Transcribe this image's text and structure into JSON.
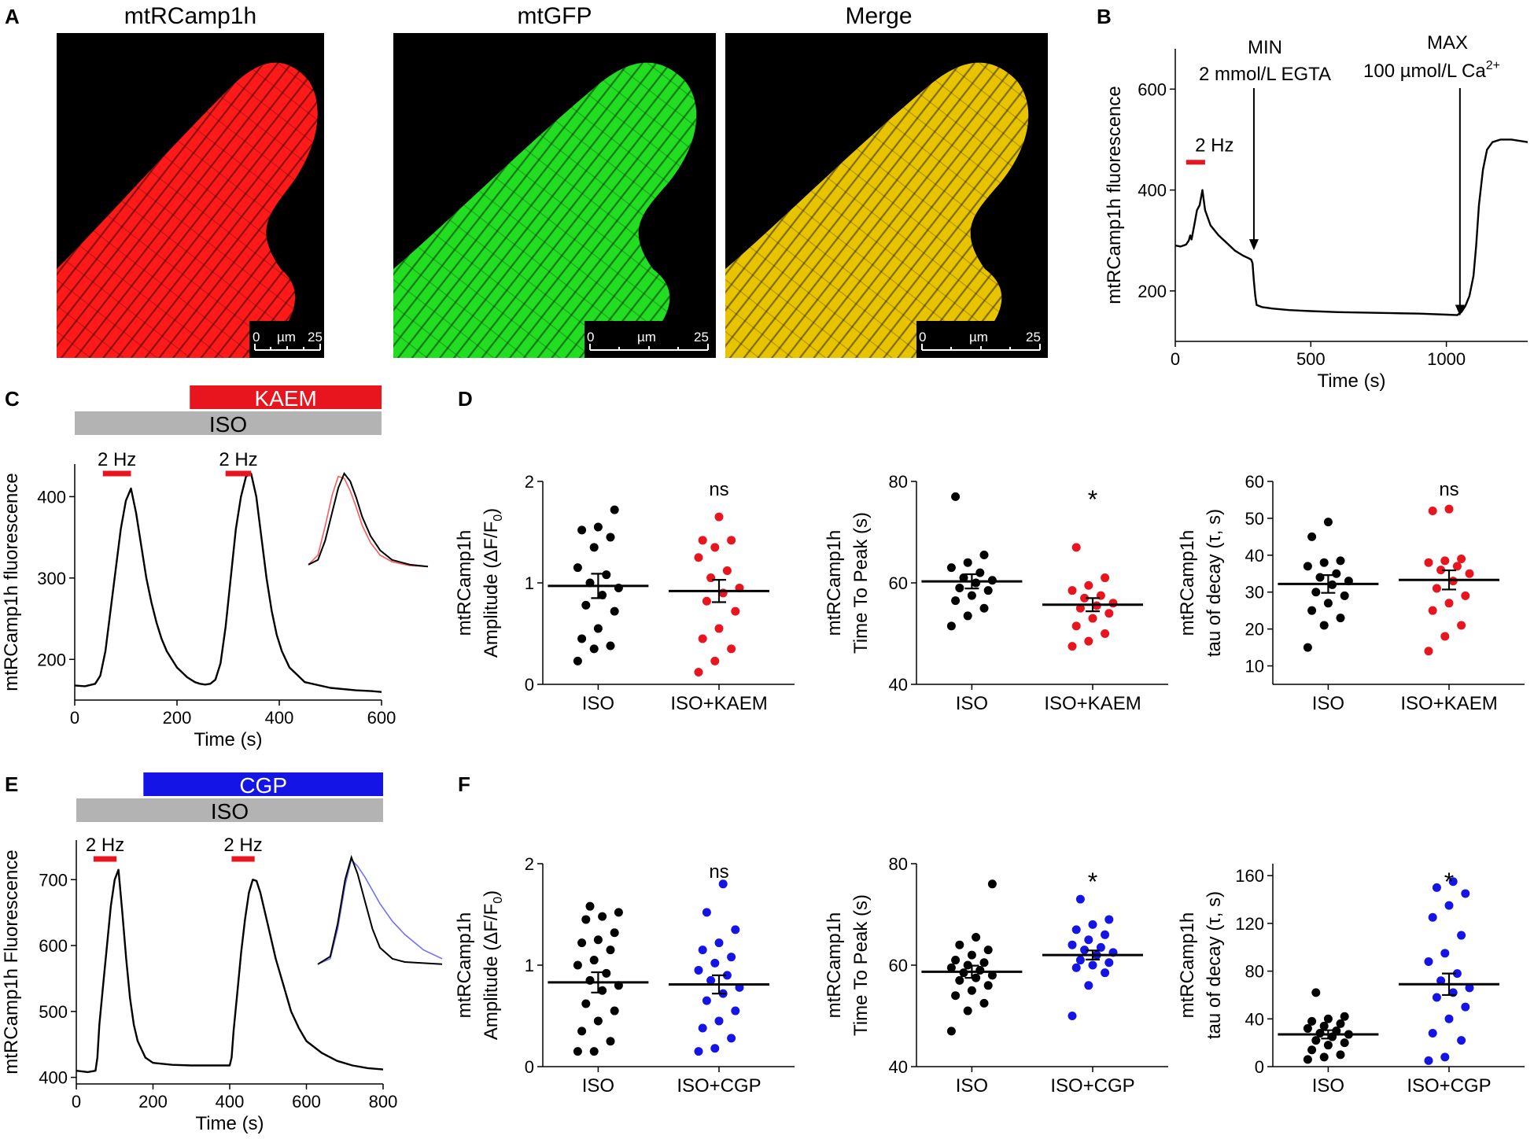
{
  "panels": {
    "A": {
      "letter": "A",
      "images": [
        {
          "title": "mtRCamp1h",
          "tint": "#ff1a1a",
          "scale_start": "0",
          "scale_unit": "µm",
          "scale_end": "25"
        },
        {
          "title": "mtGFP",
          "tint": "#22dd22",
          "scale_start": "0",
          "scale_unit": "µm",
          "scale_end": "25"
        },
        {
          "title": "Merge",
          "tint": "#e8c400",
          "scale_start": "0",
          "scale_unit": "µm",
          "scale_end": "25"
        }
      ]
    },
    "B": {
      "letter": "B",
      "annot_min": "MIN",
      "annot_egta": "2 mmol/L  EGTA",
      "annot_max": "MAX",
      "annot_ca": "100 µmol/L Ca",
      "annot_ca_sup": "2+",
      "stim_label": "2 Hz"
    },
    "C": {
      "letter": "C",
      "bar_drug": "KAEM",
      "bar_iso": "ISO",
      "stim_label_1": "2 Hz",
      "stim_label_2": "2 Hz"
    },
    "D": {
      "letter": "D"
    },
    "E": {
      "letter": "E",
      "bar_drug": "CGP",
      "bar_iso": "ISO",
      "stim_label_1": "2 Hz",
      "stim_label_2": "2 Hz"
    },
    "F": {
      "letter": "F"
    }
  },
  "colors": {
    "red": "#e8141e",
    "blue": "#1414e6",
    "gray": "#b3b3b3",
    "black": "#000000",
    "inset_blue": "#7070ff",
    "inset_red": "#ff5a5a"
  },
  "chart_data": [
    {
      "id": "B",
      "type": "line",
      "xlabel": "Time (s)",
      "ylabel": "mtRCamp1h fluorescence",
      "xlim": [
        0,
        1300
      ],
      "ylim": [
        100,
        680
      ],
      "xticks": [
        0,
        500,
        1000
      ],
      "yticks": [
        200,
        400,
        600
      ],
      "series": [
        {
          "name": "trace",
          "color": "#000000",
          "x": [
            0,
            20,
            40,
            50,
            55,
            60,
            70,
            80,
            90,
            100,
            110,
            130,
            160,
            190,
            220,
            250,
            270,
            280,
            285,
            290,
            295,
            300,
            320,
            360,
            420,
            500,
            600,
            700,
            800,
            900,
            1000,
            1040,
            1055,
            1070,
            1085,
            1100,
            1110,
            1120,
            1135,
            1150,
            1170,
            1200,
            1240,
            1300
          ],
          "y": [
            290,
            288,
            292,
            300,
            310,
            302,
            330,
            360,
            370,
            400,
            360,
            330,
            310,
            295,
            280,
            270,
            265,
            262,
            255,
            220,
            190,
            172,
            168,
            165,
            162,
            160,
            158,
            157,
            156,
            155,
            153,
            152,
            158,
            170,
            190,
            230,
            290,
            370,
            440,
            480,
            495,
            500,
            500,
            495
          ]
        }
      ],
      "stim": {
        "start": 40,
        "end": 110
      },
      "arrows": [
        {
          "x": 290,
          "y": 290
        },
        {
          "x": 1050,
          "y": 160
        }
      ]
    },
    {
      "id": "C",
      "type": "line",
      "xlabel": "Time (s)",
      "ylabel": "mtRCamp1h fluorescence",
      "xlim": [
        0,
        600
      ],
      "ylim": [
        150,
        440
      ],
      "xticks": [
        0,
        200,
        400,
        600
      ],
      "yticks": [
        200,
        300,
        400
      ],
      "series": [
        {
          "name": "trace",
          "color": "#000000",
          "x": [
            0,
            20,
            40,
            50,
            60,
            70,
            80,
            90,
            100,
            110,
            120,
            130,
            140,
            150,
            160,
            170,
            180,
            200,
            220,
            235,
            245,
            255,
            265,
            275,
            285,
            295,
            305,
            315,
            325,
            335,
            345,
            355,
            365,
            375,
            385,
            395,
            405,
            420,
            450,
            500,
            550,
            580,
            600
          ],
          "y": [
            168,
            167,
            170,
            180,
            210,
            260,
            310,
            360,
            395,
            410,
            380,
            340,
            300,
            270,
            245,
            225,
            210,
            190,
            178,
            172,
            170,
            169,
            170,
            175,
            195,
            240,
            300,
            360,
            400,
            425,
            428,
            400,
            350,
            300,
            260,
            230,
            210,
            190,
            172,
            165,
            162,
            161,
            160
          ]
        }
      ],
      "stim": [
        {
          "start": 55,
          "end": 110
        },
        {
          "start": 295,
          "end": 345
        }
      ],
      "bars": {
        "drug": {
          "start": 225,
          "end": 600
        },
        "iso": {
          "start": 0,
          "end": 600
        }
      },
      "inset": {
        "x": [
          0,
          8,
          14,
          20,
          25,
          30,
          35,
          40,
          45,
          52,
          60,
          70,
          85,
          100
        ],
        "y": [
          0.05,
          0.1,
          0.3,
          0.6,
          0.85,
          1.0,
          0.92,
          0.75,
          0.55,
          0.35,
          0.2,
          0.1,
          0.05,
          0.03
        ],
        "y2": [
          0.05,
          0.15,
          0.45,
          0.78,
          0.97,
          0.95,
          0.82,
          0.65,
          0.46,
          0.28,
          0.15,
          0.08,
          0.04,
          0.03
        ],
        "color2": "#ff5a5a"
      }
    },
    {
      "id": "E",
      "type": "line",
      "xlabel": "Time (s)",
      "ylabel": "mtRCamp1h Fluorescence",
      "xlim": [
        0,
        800
      ],
      "ylim": [
        390,
        760
      ],
      "xticks": [
        0,
        200,
        400,
        600,
        800
      ],
      "yticks": [
        400,
        500,
        600,
        700
      ],
      "series": [
        {
          "name": "trace",
          "color": "#000000",
          "x": [
            0,
            30,
            50,
            55,
            60,
            70,
            80,
            90,
            100,
            110,
            120,
            130,
            140,
            150,
            160,
            180,
            200,
            250,
            300,
            350,
            400,
            405,
            410,
            420,
            430,
            440,
            450,
            460,
            470,
            480,
            500,
            520,
            540,
            560,
            580,
            600,
            640,
            680,
            720,
            760,
            800
          ],
          "y": [
            410,
            408,
            410,
            430,
            480,
            540,
            600,
            660,
            700,
            715,
            650,
            580,
            520,
            480,
            455,
            430,
            422,
            419,
            418,
            418,
            418,
            430,
            470,
            530,
            590,
            640,
            680,
            700,
            698,
            680,
            630,
            580,
            540,
            500,
            475,
            455,
            437,
            425,
            418,
            414,
            412
          ]
        }
      ],
      "stim": [
        {
          "start": 45,
          "end": 105
        },
        {
          "start": 405,
          "end": 465
        }
      ],
      "bars": {
        "drug": {
          "start": 175,
          "end": 800
        },
        "iso": {
          "start": 0,
          "end": 800
        }
      },
      "inset": {
        "x": [
          0,
          10,
          16,
          22,
          27,
          32,
          38,
          44,
          50,
          60,
          70,
          85,
          100
        ],
        "y": [
          0.03,
          0.1,
          0.4,
          0.8,
          1.0,
          0.85,
          0.6,
          0.35,
          0.18,
          0.08,
          0.05,
          0.04,
          0.03
        ],
        "y2": [
          0.03,
          0.08,
          0.35,
          0.75,
          0.98,
          0.92,
          0.82,
          0.7,
          0.58,
          0.42,
          0.3,
          0.16,
          0.08
        ],
        "color2": "#7070ff"
      }
    },
    {
      "id": "D1",
      "type": "scatter",
      "ylabel1": "mtRCamp1h",
      "ylabel2": "Amplitude (ΔF/F",
      "ylabel_sub": "0",
      "ylabel_close": ")",
      "ylim": [
        0,
        2
      ],
      "yticks": [
        0,
        1,
        2
      ],
      "categories": [
        "ISO",
        "ISO+KAEM"
      ],
      "sig": "ns",
      "groups": [
        {
          "color": "#000000",
          "mean": 0.97,
          "sem": 0.12,
          "values": [
            0.23,
            0.35,
            0.38,
            0.45,
            0.55,
            0.72,
            0.78,
            0.88,
            0.95,
            1.0,
            1.08,
            1.15,
            1.35,
            1.45,
            1.52,
            1.55,
            1.72
          ]
        },
        {
          "color": "#e8141e",
          "mean": 0.92,
          "sem": 0.11,
          "values": [
            0.12,
            0.23,
            0.35,
            0.45,
            0.55,
            0.72,
            0.82,
            0.9,
            0.95,
            1.05,
            1.12,
            1.25,
            1.35,
            1.42,
            1.42,
            1.65
          ]
        }
      ]
    },
    {
      "id": "D2",
      "type": "scatter",
      "ylabel1": "mtRCamp1h",
      "ylabel2": "Time To Peak (s)",
      "ylim": [
        40,
        80
      ],
      "yticks": [
        40,
        60,
        80
      ],
      "categories": [
        "ISO",
        "ISO+KAEM"
      ],
      "sig": "*",
      "groups": [
        {
          "color": "#000000",
          "mean": 60.3,
          "sem": 1.4,
          "values": [
            51.5,
            53.5,
            55.0,
            56.5,
            57.5,
            58.5,
            59.0,
            60.0,
            60.5,
            61.0,
            62.0,
            63.0,
            64.0,
            65.5,
            77.0
          ]
        },
        {
          "color": "#e8141e",
          "mean": 55.7,
          "sem": 1.3,
          "values": [
            47.5,
            48.5,
            50.0,
            51.5,
            53.0,
            54.0,
            55.0,
            55.5,
            56.0,
            57.0,
            57.5,
            58.5,
            59.5,
            61.0,
            67.0
          ]
        }
      ]
    },
    {
      "id": "D3",
      "type": "scatter",
      "ylabel1": "mtRCamp1h",
      "ylabel2": "tau of decay (τ, s)",
      "ylim": [
        5,
        60
      ],
      "yticks": [
        10,
        20,
        30,
        40,
        50,
        60
      ],
      "categories": [
        "ISO",
        "ISO+KAEM"
      ],
      "sig": "ns",
      "groups": [
        {
          "color": "#000000",
          "mean": 32.2,
          "sem": 2.4,
          "values": [
            15.0,
            21.0,
            23.0,
            25.0,
            27.0,
            29.0,
            30.0,
            32.0,
            33.0,
            34.0,
            35.0,
            37.0,
            38.0,
            38.5,
            45.0,
            49.0
          ]
        },
        {
          "color": "#e8141e",
          "mean": 33.3,
          "sem": 2.6,
          "values": [
            14.0,
            18.0,
            21.0,
            25.0,
            27.0,
            29.0,
            31.0,
            33.0,
            35.0,
            36.0,
            37.0,
            38.0,
            38.5,
            39.0,
            52.0,
            52.5
          ]
        }
      ]
    },
    {
      "id": "F1",
      "type": "scatter",
      "ylabel1": "mtRCamp1h",
      "ylabel2": "Amplitude (ΔF/F",
      "ylabel_sub": "0",
      "ylabel_close": ")",
      "ylim": [
        0,
        2
      ],
      "yticks": [
        0,
        1,
        2
      ],
      "categories": [
        "ISO",
        "ISO+CGP"
      ],
      "sig": "ns",
      "groups": [
        {
          "color": "#000000",
          "mean": 0.83,
          "sem": 0.1,
          "values": [
            0.15,
            0.15,
            0.25,
            0.35,
            0.45,
            0.55,
            0.62,
            0.75,
            0.8,
            0.85,
            0.92,
            1.0,
            1.05,
            1.15,
            1.22,
            1.25,
            1.32,
            1.45,
            1.48,
            1.52,
            1.58
          ]
        },
        {
          "color": "#1414e6",
          "mean": 0.81,
          "sem": 0.09,
          "values": [
            0.15,
            0.18,
            0.28,
            0.38,
            0.45,
            0.55,
            0.65,
            0.72,
            0.78,
            0.85,
            0.9,
            0.95,
            1.02,
            1.08,
            1.15,
            1.22,
            1.35,
            1.52,
            1.8
          ]
        }
      ]
    },
    {
      "id": "F2",
      "type": "scatter",
      "ylabel1": "mtRCamp1h",
      "ylabel2": "Time To Peak (s)",
      "ylim": [
        40,
        80
      ],
      "yticks": [
        40,
        60,
        80
      ],
      "categories": [
        "ISO",
        "ISO+CGP"
      ],
      "sig": "*",
      "groups": [
        {
          "color": "#000000",
          "mean": 58.7,
          "sem": 1.2,
          "values": [
            47.0,
            51.0,
            52.5,
            54.0,
            55.0,
            56.0,
            57.0,
            57.5,
            58.0,
            58.5,
            59.0,
            59.5,
            60.0,
            60.5,
            61.0,
            62.0,
            63.0,
            64.0,
            65.5,
            76.0
          ]
        },
        {
          "color": "#1414e6",
          "mean": 62.0,
          "sem": 0.9,
          "values": [
            50.0,
            56.0,
            58.5,
            59.5,
            60.0,
            60.5,
            61.0,
            62.0,
            62.5,
            63.0,
            63.5,
            64.0,
            65.0,
            66.0,
            67.0,
            68.0,
            69.0,
            73.0
          ]
        }
      ]
    },
    {
      "id": "F3",
      "type": "scatter",
      "ylabel1": "mtRCamp1h",
      "ylabel2": "tau of decay (τ, s)",
      "ylim": [
        0,
        170
      ],
      "yticks": [
        0,
        40,
        80,
        120,
        160
      ],
      "categories": [
        "ISO",
        "ISO+CGP"
      ],
      "sig": "*",
      "groups": [
        {
          "color": "#000000",
          "mean": 27.0,
          "sem": 3.5,
          "values": [
            6.0,
            8.0,
            10.0,
            14.0,
            18.0,
            20.0,
            22.0,
            25.0,
            27.0,
            28.0,
            30.0,
            32.0,
            34.0,
            36.0,
            38.0,
            40.0,
            42.0,
            62.0
          ]
        },
        {
          "color": "#1414e6",
          "mean": 69.0,
          "sem": 9.0,
          "values": [
            5.0,
            8.0,
            22.0,
            28.0,
            40.0,
            50.0,
            58.0,
            62.0,
            66.0,
            72.0,
            78.0,
            88.0,
            95.0,
            110.0,
            125.0,
            135.0,
            145.0,
            150.0,
            155.0
          ]
        }
      ]
    }
  ]
}
